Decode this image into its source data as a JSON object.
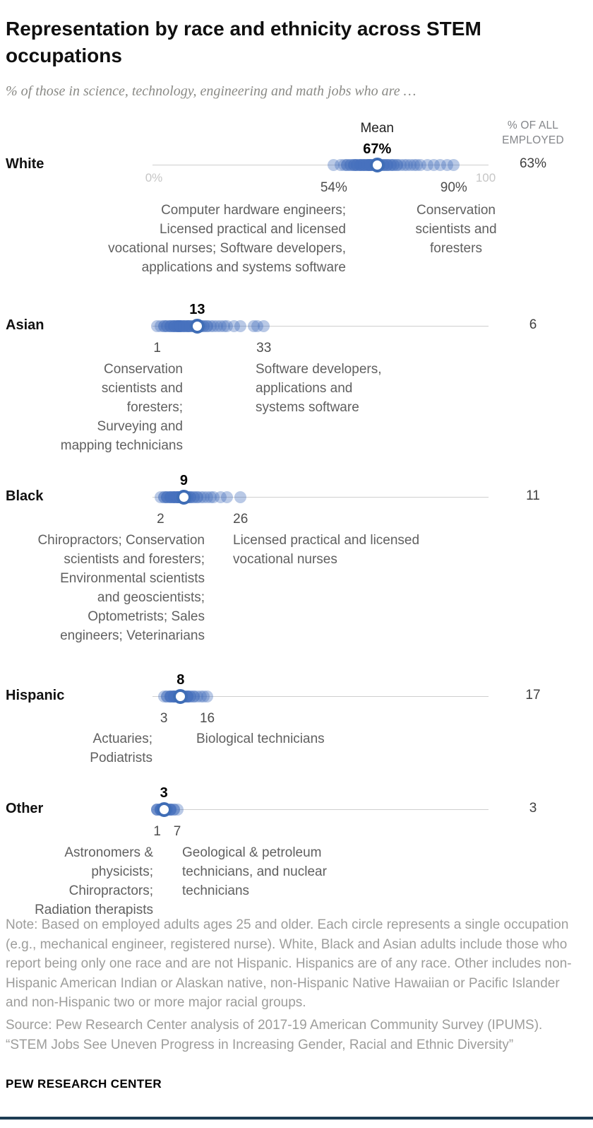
{
  "header": {
    "title": "Representation by race and ethnicity across STEM occupations",
    "subtitle": "% of those in science, technology, engineering and math jobs who are …",
    "right_column_header": "% OF ALL EMPLOYED"
  },
  "chart_data": {
    "type": "scatter",
    "title": "Representation by race and ethnicity across STEM occupations",
    "xlabel": "% of those in science, technology, engineering and math jobs",
    "xlim": [
      0,
      100
    ],
    "axis_tick_labels": [
      "0%",
      "100"
    ],
    "mean_annotation": "Mean",
    "grid": false,
    "rows": [
      {
        "category": "White",
        "mean": 67,
        "mean_display": "67%",
        "min": 54,
        "min_display": "54%",
        "max": 90,
        "max_display": "90%",
        "min_occupations": "Computer hardware engineers;\nLicensed practical and licensed\nvocational nurses; Software developers,\napplications and systems software",
        "max_occupations": "Conservation\nscientists and\nforesters",
        "pct_of_all_employed": "63%",
        "values": [
          54,
          56,
          57,
          58,
          58,
          59,
          59,
          60,
          60,
          60,
          61,
          61,
          61,
          62,
          62,
          62,
          62,
          63,
          63,
          63,
          63,
          64,
          64,
          64,
          64,
          65,
          65,
          65,
          65,
          65,
          66,
          66,
          66,
          66,
          67,
          67,
          67,
          67,
          68,
          68,
          68,
          69,
          69,
          69,
          70,
          70,
          70,
          71,
          71,
          72,
          72,
          73,
          73,
          74,
          75,
          76,
          77,
          78,
          79,
          80,
          82,
          84,
          86,
          88,
          90
        ]
      },
      {
        "category": "Asian",
        "mean": 13,
        "mean_display": "13",
        "min": 1,
        "min_display": "1",
        "max": 33,
        "max_display": "33",
        "min_occupations": "Conservation\nscientists and\nforesters;\nSurveying and\nmapping technicians",
        "max_occupations": "Software developers,\napplications and\nsystems software",
        "pct_of_all_employed": "6",
        "values": [
          1,
          2,
          3,
          3,
          4,
          4,
          5,
          5,
          5,
          6,
          6,
          6,
          6,
          7,
          7,
          7,
          7,
          7,
          8,
          8,
          8,
          8,
          8,
          9,
          9,
          9,
          9,
          10,
          10,
          10,
          10,
          11,
          11,
          11,
          12,
          12,
          12,
          13,
          13,
          13,
          14,
          14,
          15,
          15,
          16,
          16,
          17,
          18,
          19,
          20,
          21,
          22,
          24,
          26,
          30,
          31,
          33
        ]
      },
      {
        "category": "Black",
        "mean": 9,
        "mean_display": "9",
        "min": 2,
        "min_display": "2",
        "max": 26,
        "max_display": "26",
        "min_occupations": "Chiropractors; Conservation\nscientists and foresters;\nEnvironmental scientists\nand geoscientists;\nOptometrists; Sales\nengineers; Veterinarians",
        "max_occupations": "Licensed practical and licensed\nvocational nurses",
        "pct_of_all_employed": "11",
        "values": [
          2,
          3,
          3,
          4,
          4,
          4,
          5,
          5,
          5,
          5,
          6,
          6,
          6,
          6,
          6,
          7,
          7,
          7,
          7,
          7,
          7,
          8,
          8,
          8,
          8,
          8,
          9,
          9,
          9,
          9,
          10,
          10,
          10,
          11,
          11,
          11,
          12,
          12,
          13,
          13,
          14,
          15,
          16,
          17,
          18,
          20,
          22,
          26
        ]
      },
      {
        "category": "Hispanic",
        "mean": 8,
        "mean_display": "8",
        "min": 3,
        "min_display": "3",
        "max": 16,
        "max_display": "16",
        "min_occupations": "Actuaries;\nPodiatrists",
        "max_occupations": "Biological technicians",
        "pct_of_all_employed": "17",
        "values": [
          3,
          4,
          4,
          5,
          5,
          5,
          5,
          6,
          6,
          6,
          6,
          6,
          6,
          7,
          7,
          7,
          7,
          7,
          7,
          7,
          8,
          8,
          8,
          8,
          8,
          8,
          9,
          9,
          9,
          9,
          9,
          10,
          10,
          10,
          10,
          11,
          11,
          12,
          12,
          13,
          14,
          15,
          16
        ]
      },
      {
        "category": "Other",
        "mean": 3,
        "mean_display": "3",
        "min": 1,
        "min_display": "1",
        "max": 7,
        "max_display": "7",
        "min_occupations": "Astronomers &\nphysicists;\nChiropractors;\nRadiation therapists",
        "max_occupations": "Geological & petroleum\ntechnicians, and nuclear\ntechnicians",
        "pct_of_all_employed": "3",
        "values": [
          1,
          1,
          1,
          2,
          2,
          2,
          2,
          2,
          2,
          3,
          3,
          3,
          3,
          3,
          3,
          3,
          3,
          3,
          4,
          4,
          4,
          4,
          4,
          4,
          5,
          5,
          5,
          5,
          6,
          6,
          7
        ]
      }
    ]
  },
  "footer": {
    "note": "Note: Based on employed adults ages 25 and older. Each circle represents a single occupation (e.g., mechanical engineer, registered nurse). White, Black and Asian adults include those who report being only one race and are not Hispanic. Hispanics are of any race. Other includes non-Hispanic American Indian or Alaskan native, non-Hispanic Native Hawaiian or Pacific Islander and non-Hispanic two or more major racial groups.",
    "source": "Source: Pew Research Center analysis of 2017-19 American Community Survey (IPUMS). “STEM Jobs See Uneven Progress in Increasing Gender, Racial and Ethnic Diversity”",
    "brand": "PEW RESEARCH CENTER"
  },
  "colors": {
    "dot": "#4672be",
    "mean_ring": "#3f6db6",
    "axis_line": "#cfcfcf",
    "accent_bar": "#1d3d54"
  }
}
